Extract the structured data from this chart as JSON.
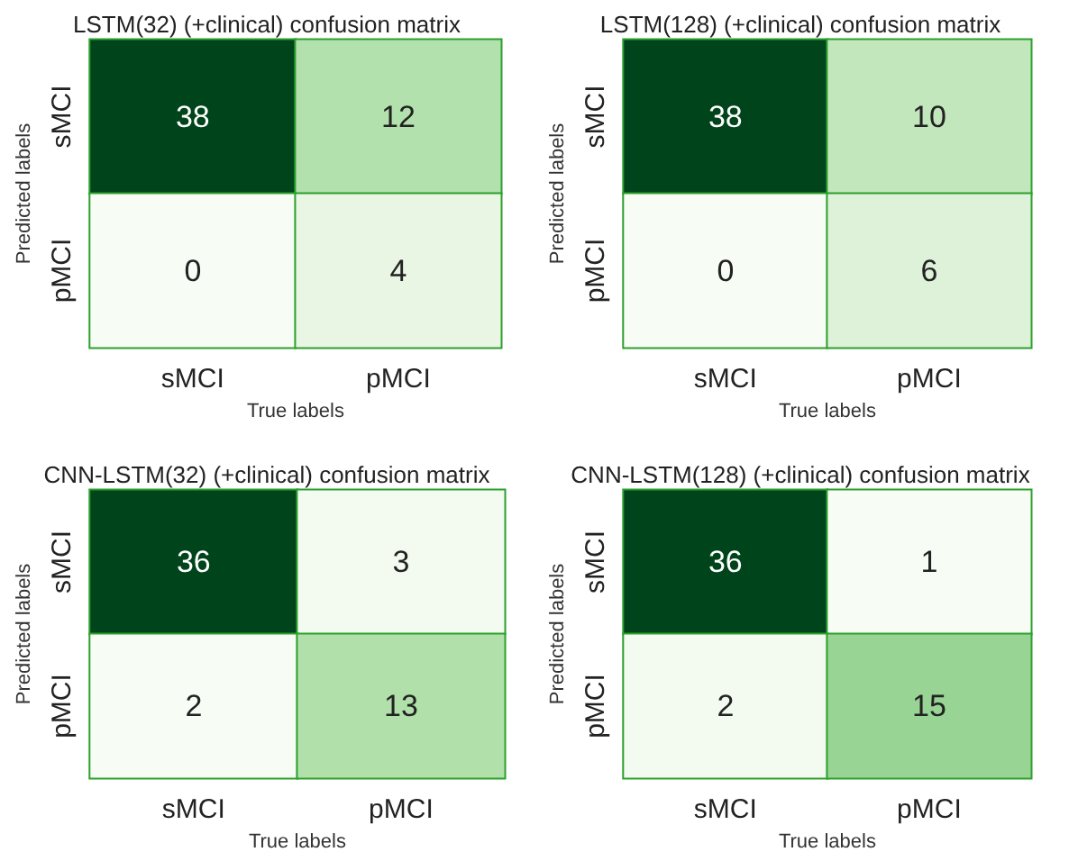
{
  "chart_data": [
    {
      "type": "heatmap",
      "title": "LSTM(32) (+clinical) confusion matrix",
      "xlabel": "True labels",
      "ylabel": "Predicted labels",
      "categories": [
        "sMCI",
        "pMCI"
      ],
      "y_categories": [
        "sMCI",
        "pMCI"
      ],
      "cells": [
        [
          38,
          12
        ],
        [
          0,
          4
        ]
      ],
      "data_labels": true
    },
    {
      "type": "heatmap",
      "title": "LSTM(128) (+clinical) confusion matrix",
      "xlabel": "True labels",
      "ylabel": "Predicted labels",
      "categories": [
        "sMCI",
        "pMCI"
      ],
      "y_categories": [
        "sMCI",
        "pMCI"
      ],
      "cells": [
        [
          38,
          10
        ],
        [
          0,
          6
        ]
      ],
      "data_labels": true
    },
    {
      "type": "heatmap",
      "title": "CNN-LSTM(32) (+clinical) confusion matrix",
      "xlabel": "True labels",
      "ylabel": "Predicted labels",
      "categories": [
        "sMCI",
        "pMCI"
      ],
      "y_categories": [
        "sMCI",
        "pMCI"
      ],
      "cells": [
        [
          36,
          3
        ],
        [
          2,
          13
        ]
      ],
      "data_labels": true
    },
    {
      "type": "heatmap",
      "title": "CNN-LSTM(128) (+clinical) confusion matrix",
      "xlabel": "True labels",
      "ylabel": "Predicted labels",
      "categories": [
        "sMCI",
        "pMCI"
      ],
      "y_categories": [
        "sMCI",
        "pMCI"
      ],
      "cells": [
        [
          36,
          1
        ],
        [
          2,
          15
        ]
      ],
      "data_labels": true
    }
  ]
}
